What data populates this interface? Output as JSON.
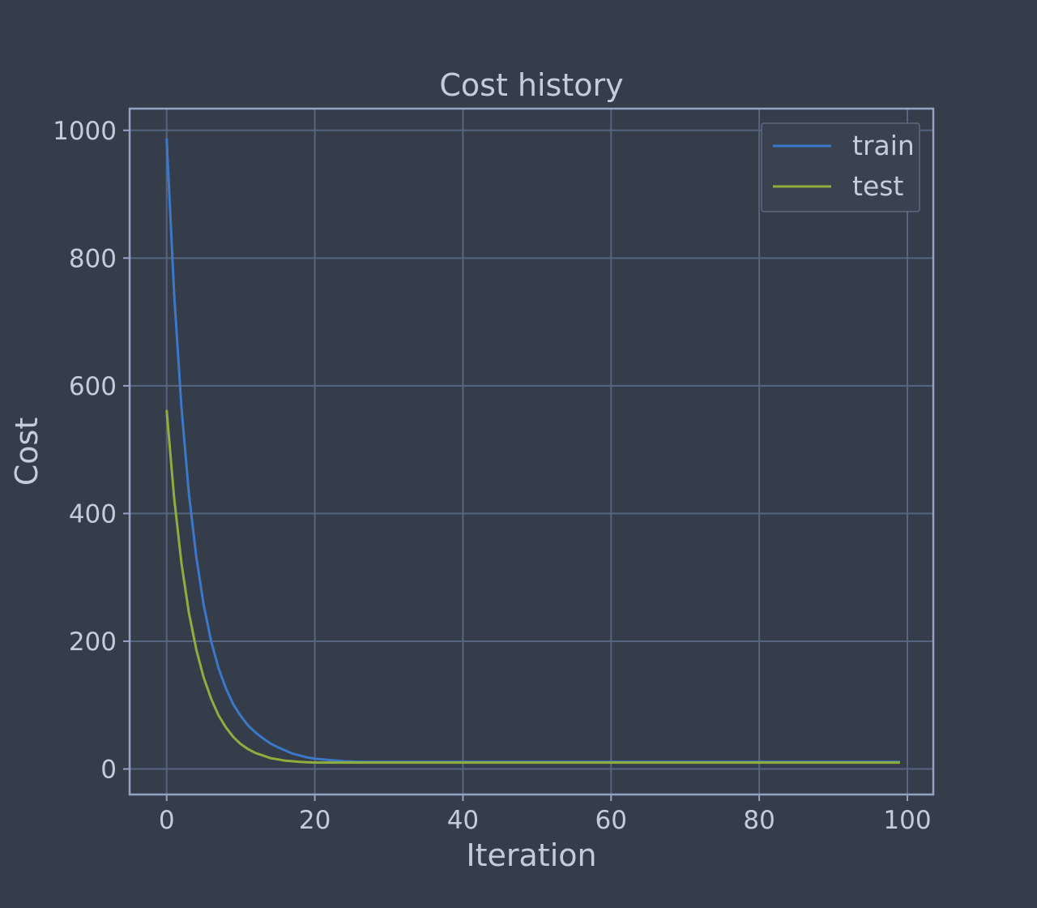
{
  "chart_data": {
    "type": "line",
    "title": "Cost history",
    "xlabel": "Iteration",
    "ylabel": "Cost",
    "xlim": [
      -5,
      103.5
    ],
    "ylim": [
      -40,
      1034
    ],
    "xticks": [
      0,
      20,
      40,
      60,
      80,
      100
    ],
    "yticks": [
      0,
      200,
      400,
      600,
      800,
      1000
    ],
    "xtick_labels": [
      "0",
      "20",
      "40",
      "60",
      "80",
      "100"
    ],
    "ytick_labels": [
      "0",
      "200",
      "400",
      "600",
      "800",
      "1000"
    ],
    "grid": true,
    "legend_position": "top-right",
    "series": [
      {
        "name": "train",
        "color": "#3b78c9",
        "x": [
          0,
          1,
          2,
          3,
          4,
          5,
          6,
          7,
          8,
          9,
          10,
          11,
          12,
          13,
          14,
          15,
          16,
          17,
          18,
          19,
          20,
          22,
          24,
          26,
          28,
          30,
          35,
          40,
          50,
          60,
          70,
          80,
          90,
          99
        ],
        "y": [
          987,
          745,
          566,
          432,
          332,
          257,
          200,
          158,
          126,
          101,
          83,
          68,
          57,
          48,
          40,
          34,
          29,
          24,
          21,
          18,
          16,
          14,
          12,
          11,
          11,
          11,
          11,
          11,
          11,
          11,
          11,
          11,
          11,
          11
        ]
      },
      {
        "name": "test",
        "color": "#8fae3e",
        "x": [
          0,
          1,
          2,
          3,
          4,
          5,
          6,
          7,
          8,
          9,
          10,
          11,
          12,
          13,
          14,
          15,
          16,
          17,
          18,
          19,
          20,
          22,
          24,
          26,
          28,
          30,
          35,
          40,
          50,
          60,
          70,
          80,
          90,
          99
        ],
        "y": [
          562,
          425,
          322,
          245,
          187,
          143,
          110,
          84,
          65,
          50,
          39,
          31,
          25,
          21,
          17,
          15,
          13,
          12,
          11,
          10.5,
          10,
          10,
          10,
          10,
          10,
          10,
          10,
          10,
          10,
          10,
          10,
          10,
          10,
          10
        ]
      }
    ]
  }
}
